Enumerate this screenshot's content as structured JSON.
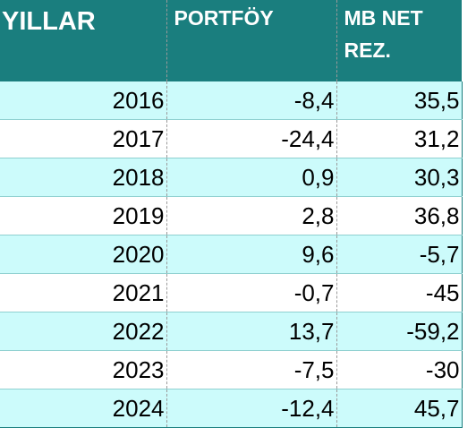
{
  "headers": {
    "years": "YILLAR",
    "portfolio": "PORTFÖY",
    "cb_net_res": "MB NET REZ."
  },
  "rows": [
    {
      "year": "2016",
      "portfolio": "-8,4",
      "cb_net_res": "35,5"
    },
    {
      "year": "2017",
      "portfolio": "-24,4",
      "cb_net_res": "31,2"
    },
    {
      "year": "2018",
      "portfolio": "0,9",
      "cb_net_res": "30,3"
    },
    {
      "year": "2019",
      "portfolio": "2,8",
      "cb_net_res": "36,8"
    },
    {
      "year": "2020",
      "portfolio": "9,6",
      "cb_net_res": "-5,7"
    },
    {
      "year": "2021",
      "portfolio": "-0,7",
      "cb_net_res": "-45"
    },
    {
      "year": "2022",
      "portfolio": "13,7",
      "cb_net_res": "-59,2"
    },
    {
      "year": "2023",
      "portfolio": "-7,5",
      "cb_net_res": "-30"
    },
    {
      "year": "2024",
      "portfolio": "-12,4",
      "cb_net_res": "45,7"
    }
  ],
  "colors": {
    "header_bg": "#1a7e7e",
    "header_text": "#ffffff",
    "alt_row_bg": "#ccfbfb"
  }
}
